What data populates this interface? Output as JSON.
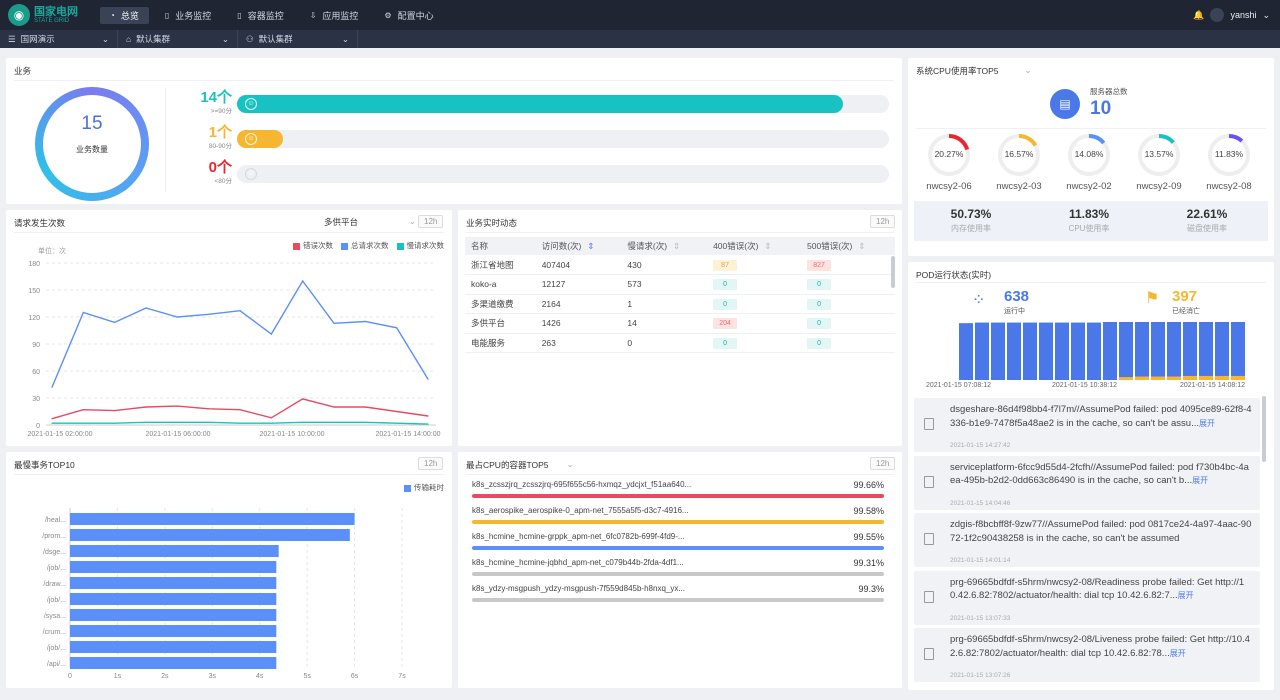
{
  "brand": {
    "name_cn": "国家电网",
    "name_en": "STATE GRID"
  },
  "nav": [
    {
      "label": "总览",
      "icon": "dashboard-icon",
      "active": true
    },
    {
      "label": "业务监控",
      "icon": "document-icon",
      "active": false
    },
    {
      "label": "容器监控",
      "icon": "document-icon",
      "active": false
    },
    {
      "label": "应用监控",
      "icon": "download-icon",
      "active": false
    },
    {
      "label": "配置中心",
      "icon": "gear-icon",
      "active": false
    }
  ],
  "user": {
    "name": "yanshi"
  },
  "filters": [
    {
      "label": "国网演示",
      "icon": "menu-icon"
    },
    {
      "label": "默认集群",
      "icon": "cluster-icon"
    },
    {
      "label": "默认集群",
      "icon": "user-icon"
    }
  ],
  "business": {
    "title": "业务",
    "total": "15",
    "total_label": "业务数量",
    "levels": [
      {
        "count": "14个",
        "range": ">=90分",
        "color": "#19c2c2",
        "fraction": 0.93
      },
      {
        "count": "1个",
        "range": "80-90分",
        "color": "#f5b731",
        "fraction": 0.07
      },
      {
        "count": "0个",
        "range": "<80分",
        "color": "#e8262e",
        "fraction": 0
      }
    ]
  },
  "requests": {
    "title": "请求发生次数",
    "dropdown": "多供平台",
    "period": "12h",
    "unit": "单位：次",
    "legend": [
      "错误次数",
      "总请求次数",
      "慢请求次数"
    ]
  },
  "chart_data": {
    "type": "line",
    "yticks": [
      "0",
      "30",
      "60",
      "90",
      "120",
      "150",
      "180"
    ],
    "ylim": [
      0,
      180
    ],
    "xticks": [
      "2021-01-15 02:00:00",
      "2021-01-15 06:00:00",
      "2021-01-15 10:00:00",
      "2021-01-15 14:00:00"
    ],
    "series": [
      {
        "name": "总请求次数",
        "color": "#5b8ff9",
        "values": [
          42,
          125,
          114,
          130,
          120,
          123,
          127,
          101,
          160,
          113,
          115,
          108,
          51
        ]
      },
      {
        "name": "错误次数",
        "color": "#e84a5f",
        "values": [
          7,
          17,
          16,
          20,
          21,
          18,
          17,
          8,
          29,
          20,
          20,
          15,
          10
        ]
      },
      {
        "name": "慢请求次数",
        "color": "#19c2c2",
        "values": [
          2,
          2,
          2,
          3,
          3,
          3,
          2,
          2,
          3,
          3,
          3,
          2,
          1
        ]
      }
    ]
  },
  "realtime": {
    "title": "业务实时动态",
    "period": "12h",
    "headers": [
      "名称",
      "访问数(次)",
      "慢请求(次)",
      "400错误(次)",
      "500错误(次)"
    ],
    "rows": [
      {
        "name": "浙江省地图",
        "visits": "407404",
        "slow": "430",
        "e400": "87",
        "e400c": "y",
        "e500": "827",
        "e500c": "r"
      },
      {
        "name": "koko-a",
        "visits": "12127",
        "slow": "573",
        "e400": "0",
        "e400c": "c",
        "e500": "0",
        "e500c": "c"
      },
      {
        "name": "多渠道缴费",
        "visits": "2164",
        "slow": "1",
        "e400": "0",
        "e400c": "c",
        "e500": "0",
        "e500c": "c"
      },
      {
        "name": "多供平台",
        "visits": "1426",
        "slow": "14",
        "e400": "204",
        "e400c": "r",
        "e500": "0",
        "e500c": "c"
      },
      {
        "name": "电能服务",
        "visits": "263",
        "slow": "0",
        "e400": "0",
        "e400c": "c",
        "e500": "0",
        "e500c": "c"
      }
    ]
  },
  "slow_top": {
    "title": "最慢事务TOP10",
    "period": "12h",
    "legend": "传输耗时",
    "color": "#5b8ff9",
    "categories": [
      "/heal...",
      "/prom...",
      "/dsge...",
      "/job/...",
      "/draw...",
      "/job/...",
      "/sysa...",
      "/crum...",
      "/job/...",
      "/api/..."
    ],
    "values": [
      6.0,
      5.9,
      4.4,
      4.35,
      4.35,
      4.35,
      4.35,
      4.35,
      4.35,
      4.35
    ],
    "xticks": [
      "0",
      "1s",
      "2s",
      "3s",
      "4s",
      "5s",
      "6s",
      "7s"
    ],
    "xmax": 7
  },
  "cpu_top": {
    "title": "最占CPU的容器TOP5",
    "period": "12h",
    "items": [
      {
        "name": "k8s_zcsszjrq_zcsszjrq-695f655c56-hxmqz_ydcjxt_f51aa640...",
        "pct": "99.66%",
        "color": "#e84a5f"
      },
      {
        "name": "k8s_aerospike_aerospike-0_apm-net_7555a5f5-d3c7-4916...",
        "pct": "99.58%",
        "color": "#f5b731"
      },
      {
        "name": "k8s_hcmine_hcmine-grppk_apm-net_6fc0782b-699f-4fd9-...",
        "pct": "99.55%",
        "color": "#5b8ff9"
      },
      {
        "name": "k8s_hcmine_hcmine-jqbhd_apm-net_c079b44b-2fda-4df1...",
        "pct": "99.31%",
        "color": "#c8c8c8"
      },
      {
        "name": "k8s_ydzy-msgpush_ydzy-msgpush-7f559d845b-h8nxq_yx...",
        "pct": "99.3%",
        "color": "#c8c8c8"
      }
    ]
  },
  "sys_cpu": {
    "title": "系统CPU使用率TOP5",
    "server_label": "服务器总数",
    "server_count": "10",
    "gauges": [
      {
        "pct": "20.27%",
        "value": 20.27,
        "host": "nwcsy2-06",
        "color": "#e8262e"
      },
      {
        "pct": "16.57%",
        "value": 16.57,
        "host": "nwcsy2-03",
        "color": "#f5b731"
      },
      {
        "pct": "14.08%",
        "value": 14.08,
        "host": "nwcsy2-02",
        "color": "#5b8ff9"
      },
      {
        "pct": "13.57%",
        "value": 13.57,
        "host": "nwcsy2-09",
        "color": "#19c2c2"
      },
      {
        "pct": "11.83%",
        "value": 11.83,
        "host": "nwcsy2-08",
        "color": "#6e4ff5"
      }
    ],
    "stats": [
      {
        "value": "50.73%",
        "label": "内存使用率"
      },
      {
        "value": "11.83%",
        "label": "CPU使用率"
      },
      {
        "value": "22.61%",
        "label": "磁盘使用率"
      }
    ]
  },
  "pod": {
    "title": "POD运行状态(实时)",
    "running": "638",
    "running_label": "运行中",
    "dead": "397",
    "dead_label": "已经消亡",
    "times": [
      "2021-01-15 07:08:12",
      "2021-01-15 10:38:12",
      "2021-01-15 14:08:12"
    ],
    "bars": [
      0.98,
      0.99,
      0.99,
      0.99,
      0.99,
      0.99,
      0.99,
      0.99,
      0.99,
      1.0,
      1.0,
      1.0,
      1.0,
      1.0,
      1.0,
      1.0,
      1.0,
      1.0
    ],
    "dead_frac": [
      0,
      0,
      0,
      0,
      0,
      0,
      0,
      0,
      0,
      0,
      0.05,
      0.06,
      0.06,
      0.06,
      0.07,
      0.07,
      0.07,
      0.07
    ],
    "logs": [
      {
        "text": "dsgeshare-86d4f98bb4-f7l7m//AssumePod failed: pod 4095ce89-62f8-4336-b1e9-7478f5a48ae2 is in the cache, so can't be assu...",
        "more": "展开",
        "time": "2021-01-15 14:27:42"
      },
      {
        "text": "serviceplatform-6fcc9d55d4-2fcfh//AssumePod failed: pod f730b4bc-4aea-495b-b2d2-0dd663c86490 is in the cache, so can't b...",
        "more": "展开",
        "time": "2021-01-15 14:04:46"
      },
      {
        "text": "zdgis-f8bcbff8f-9zw77//AssumePod failed: pod 0817ce24-4a97-4aac-9072-1f2c90438258 is in the cache, so can't be assumed",
        "more": "",
        "time": "2021-01-15 14:01:14"
      },
      {
        "text": "prg-69665bdfdf-s5hrm/nwcsy2-08/Readiness probe failed: Get http://10.42.6.82:7802/actuator/health: dial tcp 10.42.6.82:7...",
        "more": "展开",
        "time": "2021-01-15 13:07:33"
      },
      {
        "text": "prg-69665bdfdf-s5hrm/nwcsy2-08/Liveness probe failed: Get http://10.42.6.82:7802/actuator/health: dial tcp 10.42.6.82:78...",
        "more": "展开",
        "time": "2021-01-15 13:07:26"
      }
    ]
  }
}
